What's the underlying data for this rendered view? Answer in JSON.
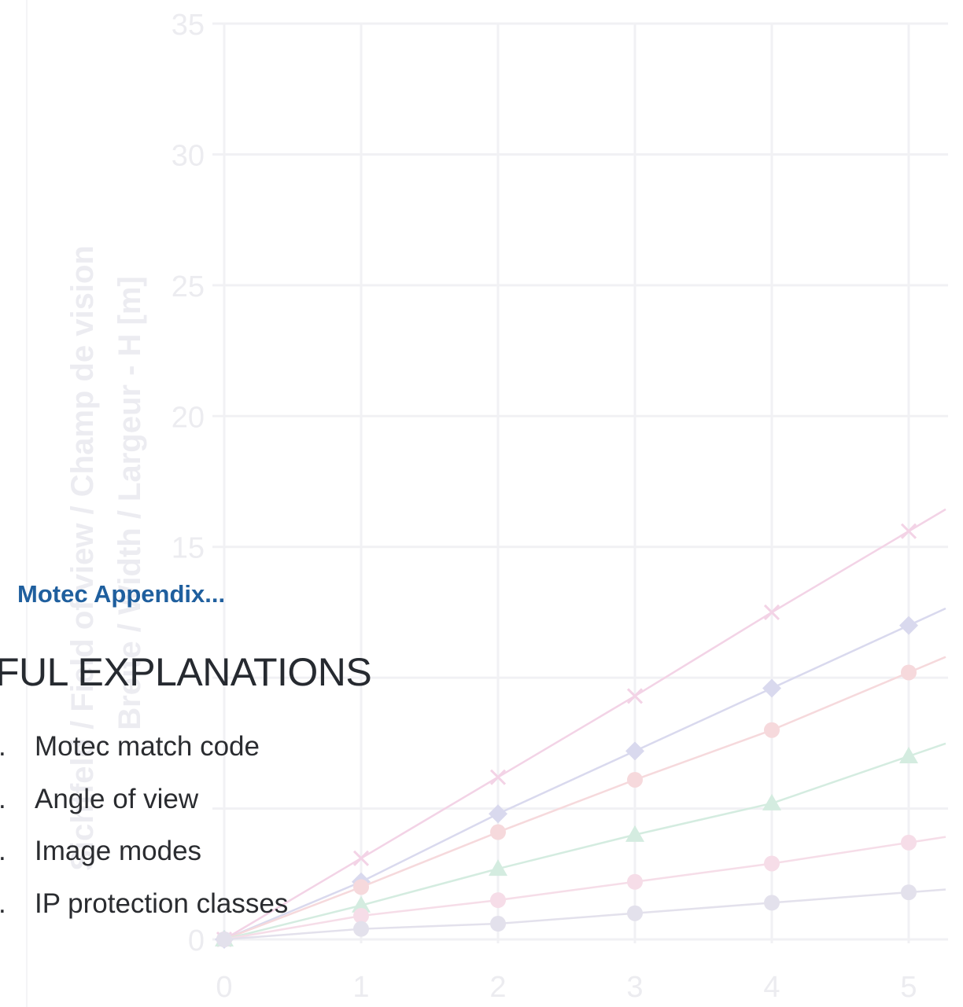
{
  "page": {
    "subtitle": "Motec Appendix...",
    "heading": "FUL EXPLANATIONS",
    "items": [
      {
        "num": ".",
        "label": "Motec match code"
      },
      {
        "num": ".",
        "label": "Angle of view"
      },
      {
        "num": ".",
        "label": "Image modes"
      },
      {
        "num": ".",
        "label": "IP protection classes"
      }
    ]
  },
  "chart_data": {
    "type": "line",
    "opacity": "faded watermark background",
    "ylabel": "Sichtfeld / Field of view / Champ de vision",
    "ylabel2": "Breite / Width / Largeur - H [m]",
    "xlim": [
      0,
      5
    ],
    "ylim": [
      0,
      35
    ],
    "x_ticks": [
      "0",
      "1",
      "2",
      "3",
      "4",
      "5"
    ],
    "y_ticks": [
      "0",
      "15",
      "20",
      "25",
      "30",
      "35"
    ],
    "grid": true,
    "x": [
      0,
      1,
      2,
      3,
      4,
      5
    ],
    "series": [
      {
        "marker": "x",
        "color": "#f3d3e6",
        "values": [
          0,
          3.1,
          6.2,
          9.3,
          12.5,
          15.6
        ]
      },
      {
        "marker": "diamond",
        "color": "#d9d9ee",
        "values": [
          0,
          2.2,
          4.8,
          7.2,
          9.6,
          12.0
        ]
      },
      {
        "marker": "circle",
        "color": "#f6d9dc",
        "values": [
          0,
          2.0,
          4.1,
          6.1,
          8.0,
          10.2
        ]
      },
      {
        "marker": "triangle",
        "color": "#d4ece0",
        "values": [
          0,
          1.3,
          2.7,
          4.0,
          5.2,
          7.0
        ]
      },
      {
        "marker": "circle",
        "color": "#f6dde8",
        "values": [
          0,
          0.9,
          1.5,
          2.2,
          2.9,
          3.7
        ]
      },
      {
        "marker": "circle",
        "color": "#e3e1ec",
        "values": [
          0,
          0.4,
          0.6,
          1.0,
          1.4,
          1.8
        ]
      }
    ]
  }
}
